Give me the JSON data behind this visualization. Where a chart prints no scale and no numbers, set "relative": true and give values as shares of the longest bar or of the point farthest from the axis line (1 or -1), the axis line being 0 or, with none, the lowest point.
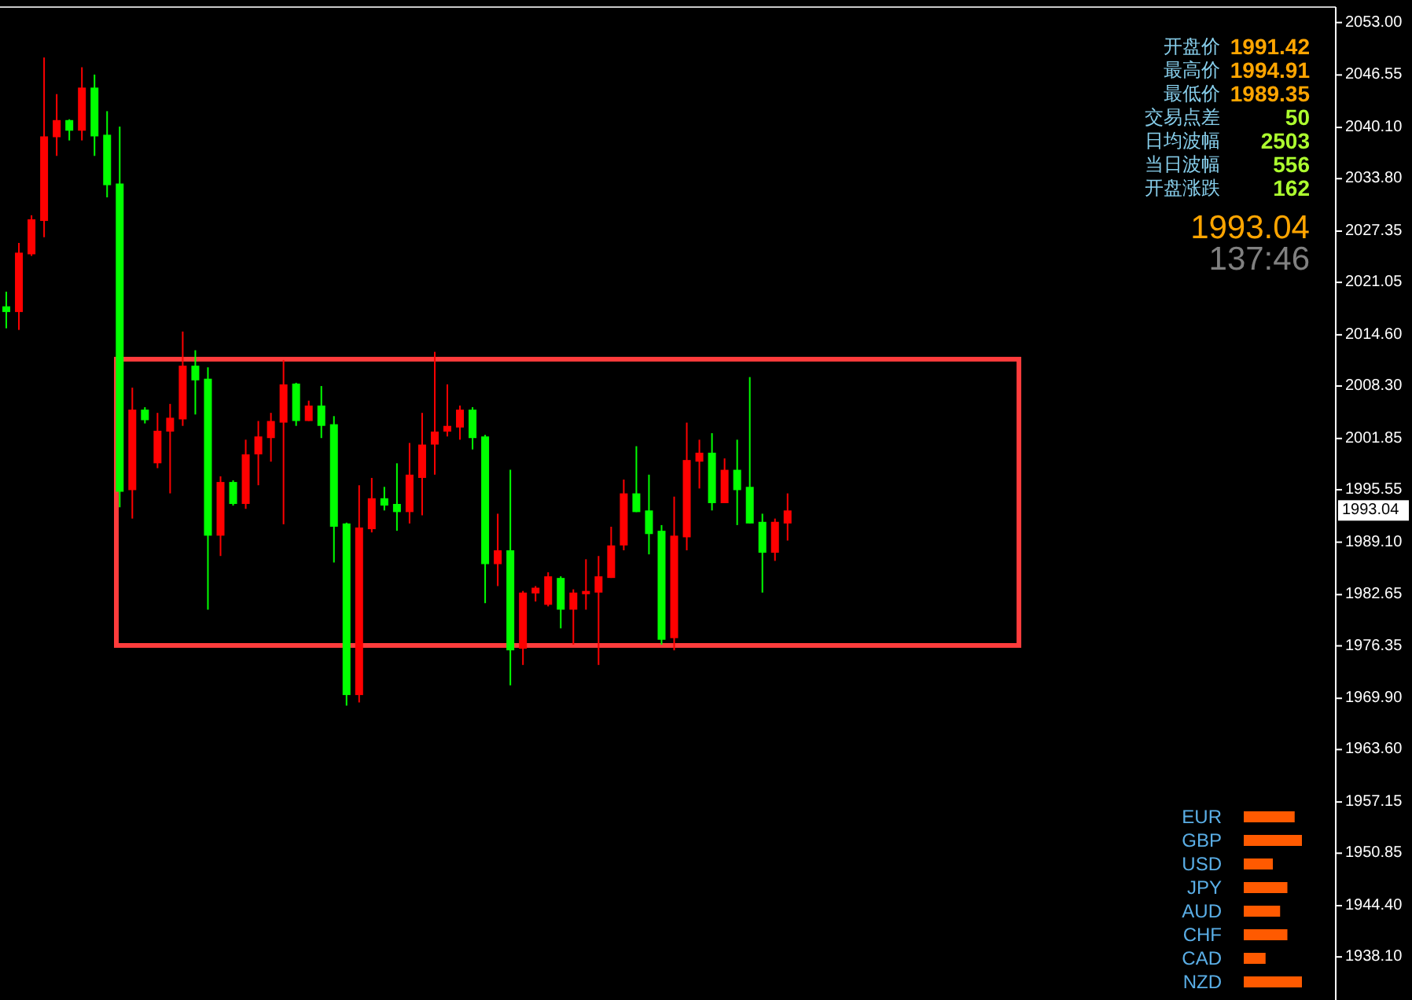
{
  "chart_data": [
    {
      "type": "candlestick",
      "categories": [
        null,
        null,
        null,
        null,
        null,
        null,
        null,
        null,
        null,
        null,
        null,
        null,
        null,
        null,
        null,
        null,
        null,
        null,
        null,
        null,
        null,
        null,
        null,
        null,
        null,
        null,
        null,
        null,
        null,
        null,
        null,
        null,
        null,
        null,
        null,
        null,
        null,
        null,
        null,
        null,
        null,
        null,
        null,
        null,
        null,
        null,
        null,
        null,
        null,
        null,
        null,
        null,
        null,
        null,
        null,
        null,
        null,
        null,
        null,
        null,
        null,
        null,
        null,
        null,
        null,
        null,
        null,
        null,
        null,
        null,
        null,
        null,
        null,
        null,
        null,
        null,
        null,
        null,
        null,
        null,
        null,
        null,
        null,
        null,
        null,
        null,
        null,
        null,
        null,
        null,
        null,
        null,
        null,
        null,
        null,
        null,
        null,
        null,
        null,
        null,
        null,
        null,
        null,
        null,
        null,
        null
      ],
      "ohlc": [
        [
          2018.1,
          2019.9,
          2015.4,
          2017.4
        ],
        [
          2017.4,
          2025.9,
          2015.2,
          2024.7
        ],
        [
          2024.5,
          2029.3,
          2024.3,
          2028.8
        ],
        [
          2028.6,
          2048.7,
          2026.6,
          2039.0
        ],
        [
          2038.9,
          2044.2,
          2036.6,
          2041.0
        ],
        [
          2041.0,
          2041.1,
          2038.5,
          2039.7
        ],
        [
          2039.7,
          2047.5,
          2038.5,
          2045.0
        ],
        [
          2045.0,
          2046.6,
          2036.6,
          2039.0
        ],
        [
          2039.2,
          2042.1,
          2031.5,
          2033.0
        ],
        [
          2033.2,
          2040.2,
          1993.4,
          1995.3
        ],
        [
          1995.5,
          2008.1,
          1992.0,
          2005.4
        ],
        [
          2005.4,
          2005.7,
          2003.7,
          2004.1
        ],
        [
          1998.8,
          2005.0,
          1998.2,
          2002.8
        ],
        [
          2002.7,
          2006.1,
          1995.1,
          2004.4
        ],
        [
          2004.2,
          2015.0,
          2003.4,
          2010.8
        ],
        [
          2010.8,
          2012.7,
          2004.8,
          2009.0
        ],
        [
          2009.2,
          2010.6,
          1980.8,
          1989.9
        ],
        [
          1989.9,
          1997.2,
          1987.4,
          1996.5
        ],
        [
          1996.5,
          1996.7,
          1993.6,
          1993.8
        ],
        [
          1993.8,
          2001.7,
          1993.2,
          1999.9
        ],
        [
          1999.9,
          2004.0,
          1996.1,
          2002.1
        ],
        [
          2001.9,
          2005.0,
          1999.0,
          2004.0
        ],
        [
          2003.8,
          2011.5,
          1991.3,
          2008.5
        ],
        [
          2008.6,
          2008.7,
          2003.4,
          2004.0
        ],
        [
          2004.0,
          2006.5,
          2004.0,
          2005.9
        ],
        [
          2005.9,
          2008.3,
          2001.9,
          2003.4
        ],
        [
          2003.6,
          2004.6,
          1986.6,
          1991.0
        ],
        [
          1991.4,
          1991.5,
          1969.0,
          1970.3
        ],
        [
          1970.3,
          1996.1,
          1969.4,
          1990.9
        ],
        [
          1990.7,
          1997.0,
          1990.3,
          1994.5
        ],
        [
          1994.5,
          1995.9,
          1993.0,
          1993.6
        ],
        [
          1993.8,
          1998.8,
          1990.5,
          1992.8
        ],
        [
          1992.8,
          2001.3,
          1991.4,
          1997.4
        ],
        [
          1997.0,
          2005.0,
          1992.4,
          2001.1
        ],
        [
          2001.1,
          2012.5,
          1997.4,
          2002.7
        ],
        [
          2002.7,
          2008.5,
          2002.1,
          2003.4
        ],
        [
          2003.2,
          2005.9,
          2001.7,
          2005.4
        ],
        [
          2005.4,
          2005.7,
          2000.5,
          2001.9
        ],
        [
          2002.1,
          2002.3,
          1981.6,
          1986.4
        ],
        [
          1986.4,
          1992.6,
          1983.7,
          1988.1
        ],
        [
          1988.1,
          1998.0,
          1971.5,
          1975.8
        ],
        [
          1976.0,
          1983.1,
          1974.0,
          1982.9
        ],
        [
          1982.8,
          1983.7,
          1981.8,
          1983.5
        ],
        [
          1981.4,
          1985.4,
          1981.2,
          1984.9
        ],
        [
          1984.7,
          1984.9,
          1978.5,
          1980.8
        ],
        [
          1980.8,
          1983.3,
          1976.5,
          1982.9
        ],
        [
          1982.7,
          1987.0,
          1980.8,
          1983.1
        ],
        [
          1982.9,
          1987.4,
          1974.0,
          1984.9
        ],
        [
          1984.7,
          1991.0,
          1984.7,
          1988.7
        ],
        [
          1988.7,
          1996.8,
          1988.1,
          1995.1
        ],
        [
          1995.1,
          2000.9,
          1992.8,
          1992.8
        ],
        [
          1993.0,
          1997.4,
          1987.6,
          1990.1
        ],
        [
          1990.5,
          1991.2,
          1976.5,
          1977.1
        ],
        [
          1977.3,
          1994.7,
          1975.8,
          1989.9
        ],
        [
          1989.7,
          2003.8,
          1988.1,
          1999.2
        ],
        [
          1999.0,
          2001.7,
          1995.7,
          2000.1
        ],
        [
          2000.1,
          2002.5,
          1993.0,
          1993.9
        ],
        [
          1993.9,
          1999.4,
          1993.9,
          1998.0
        ],
        [
          1998.0,
          2001.7,
          1991.2,
          1995.5
        ],
        [
          1995.9,
          2009.4,
          1991.4,
          1991.4
        ],
        [
          1991.6,
          1992.6,
          1982.9,
          1987.8
        ],
        [
          1987.8,
          1992.0,
          1986.8,
          1991.6
        ],
        [
          1991.4,
          1995.1,
          1989.3,
          1993.0
        ],
        null,
        null,
        null,
        null,
        null,
        null,
        null,
        null,
        null,
        null,
        null,
        null,
        null,
        null,
        null,
        null,
        null,
        null,
        null,
        null,
        null,
        null,
        null,
        null,
        null,
        null,
        null,
        null,
        null,
        null,
        null,
        null,
        null,
        null,
        null,
        null,
        null,
        null,
        null,
        null,
        null,
        null,
        null
      ],
      "colors": [
        "#00ff00",
        "#ff0000",
        "#ff0000",
        "#ff0000",
        "#ff0000",
        "#00ff00",
        "#ff0000",
        "#00ff00",
        "#00ff00",
        "#00ff00",
        "#ff0000",
        "#00ff00",
        "#ff0000",
        "#ff0000",
        "#ff0000",
        "#00ff00",
        "#00ff00",
        "#ff0000",
        "#00ff00",
        "#ff0000",
        "#ff0000",
        "#ff0000",
        "#ff0000",
        "#00ff00",
        "#ff0000",
        "#00ff00",
        "#00ff00",
        "#00ff00",
        "#ff0000",
        "#ff0000",
        "#00ff00",
        "#00ff00",
        "#ff0000",
        "#ff0000",
        "#ff0000",
        "#ff0000",
        "#ff0000",
        "#00ff00",
        "#00ff00",
        "#ff0000",
        "#00ff00",
        "#ff0000",
        "#ff0000",
        "#ff0000",
        "#00ff00",
        "#ff0000",
        "#ff0000",
        "#ff0000",
        "#ff0000",
        "#ff0000",
        "#00ff00",
        "#00ff00",
        "#00ff00",
        "#ff0000",
        "#ff0000",
        "#ff0000",
        "#00ff00",
        "#ff0000",
        "#00ff00",
        "#00ff00",
        "#00ff00",
        "#ff0000",
        "#ff0000",
        null,
        null,
        null,
        null,
        null,
        null,
        null,
        null,
        null,
        null,
        null,
        null,
        null,
        null,
        null,
        null,
        null,
        null,
        null,
        null,
        null,
        null,
        null,
        null,
        null,
        null,
        null,
        null,
        null,
        null,
        null,
        null,
        null,
        null,
        null,
        null,
        null,
        null,
        null,
        null,
        null,
        null,
        null
      ],
      "ylim": [
        1932.8,
        2054.9
      ],
      "yticks": [
        {
          "value": 2053.0,
          "label": "2053.00"
        },
        {
          "value": 2046.55,
          "label": "2046.55"
        },
        {
          "value": 2040.1,
          "label": "2040.10"
        },
        {
          "value": 2033.8,
          "label": "2033.80"
        },
        {
          "value": 2027.35,
          "label": "2027.35"
        },
        {
          "value": 2021.05,
          "label": "2021.05"
        },
        {
          "value": 2014.6,
          "label": "2014.60"
        },
        {
          "value": 2008.3,
          "label": "2008.30"
        },
        {
          "value": 2001.85,
          "label": "2001.85"
        },
        {
          "value": 1995.55,
          "label": "1995.55"
        },
        {
          "value": 1989.1,
          "label": "1989.10"
        },
        {
          "value": 1982.65,
          "label": "1982.65"
        },
        {
          "value": 1976.35,
          "label": "1976.35"
        },
        {
          "value": 1969.9,
          "label": "1969.90"
        },
        {
          "value": 1963.6,
          "label": "1963.60"
        },
        {
          "value": 1957.15,
          "label": "1957.15"
        },
        {
          "value": 1950.85,
          "label": "1950.85"
        },
        {
          "value": 1944.4,
          "label": "1944.40"
        },
        {
          "value": 1938.1,
          "label": "1938.10"
        }
      ],
      "bands": [
        {
          "axis": "y",
          "from": 1976.4,
          "to": 2011.6,
          "color": "#ff3c3c"
        }
      ],
      "annotations": [
        "1993.04"
      ]
    },
    {
      "type": "other",
      "annotations": [
        "开盘价",
        "1991.42",
        "最高价",
        "1994.91",
        "最低价",
        "1989.35",
        "交易点差",
        "50",
        "日均波幅",
        "2503",
        "当日波幅",
        "556",
        "开盘涨跌",
        "162",
        "1993.04",
        "137:46"
      ]
    },
    {
      "type": "bar",
      "orientation": "horizontal",
      "relative": true,
      "categories": [
        "EUR",
        "GBP",
        "USD",
        "JPY",
        "AUD",
        "CHF",
        "CAD",
        "NZD"
      ],
      "values": [
        0.875,
        1,
        0.5,
        0.75,
        0.625,
        0.75,
        0.375,
        1
      ],
      "colors": [
        "#ff5a00",
        "#ff5a00",
        "#ff5a00",
        "#ff5a00",
        "#ff5a00",
        "#ff5a00",
        "#ff5a00",
        "#ff5a00"
      ]
    }
  ]
}
